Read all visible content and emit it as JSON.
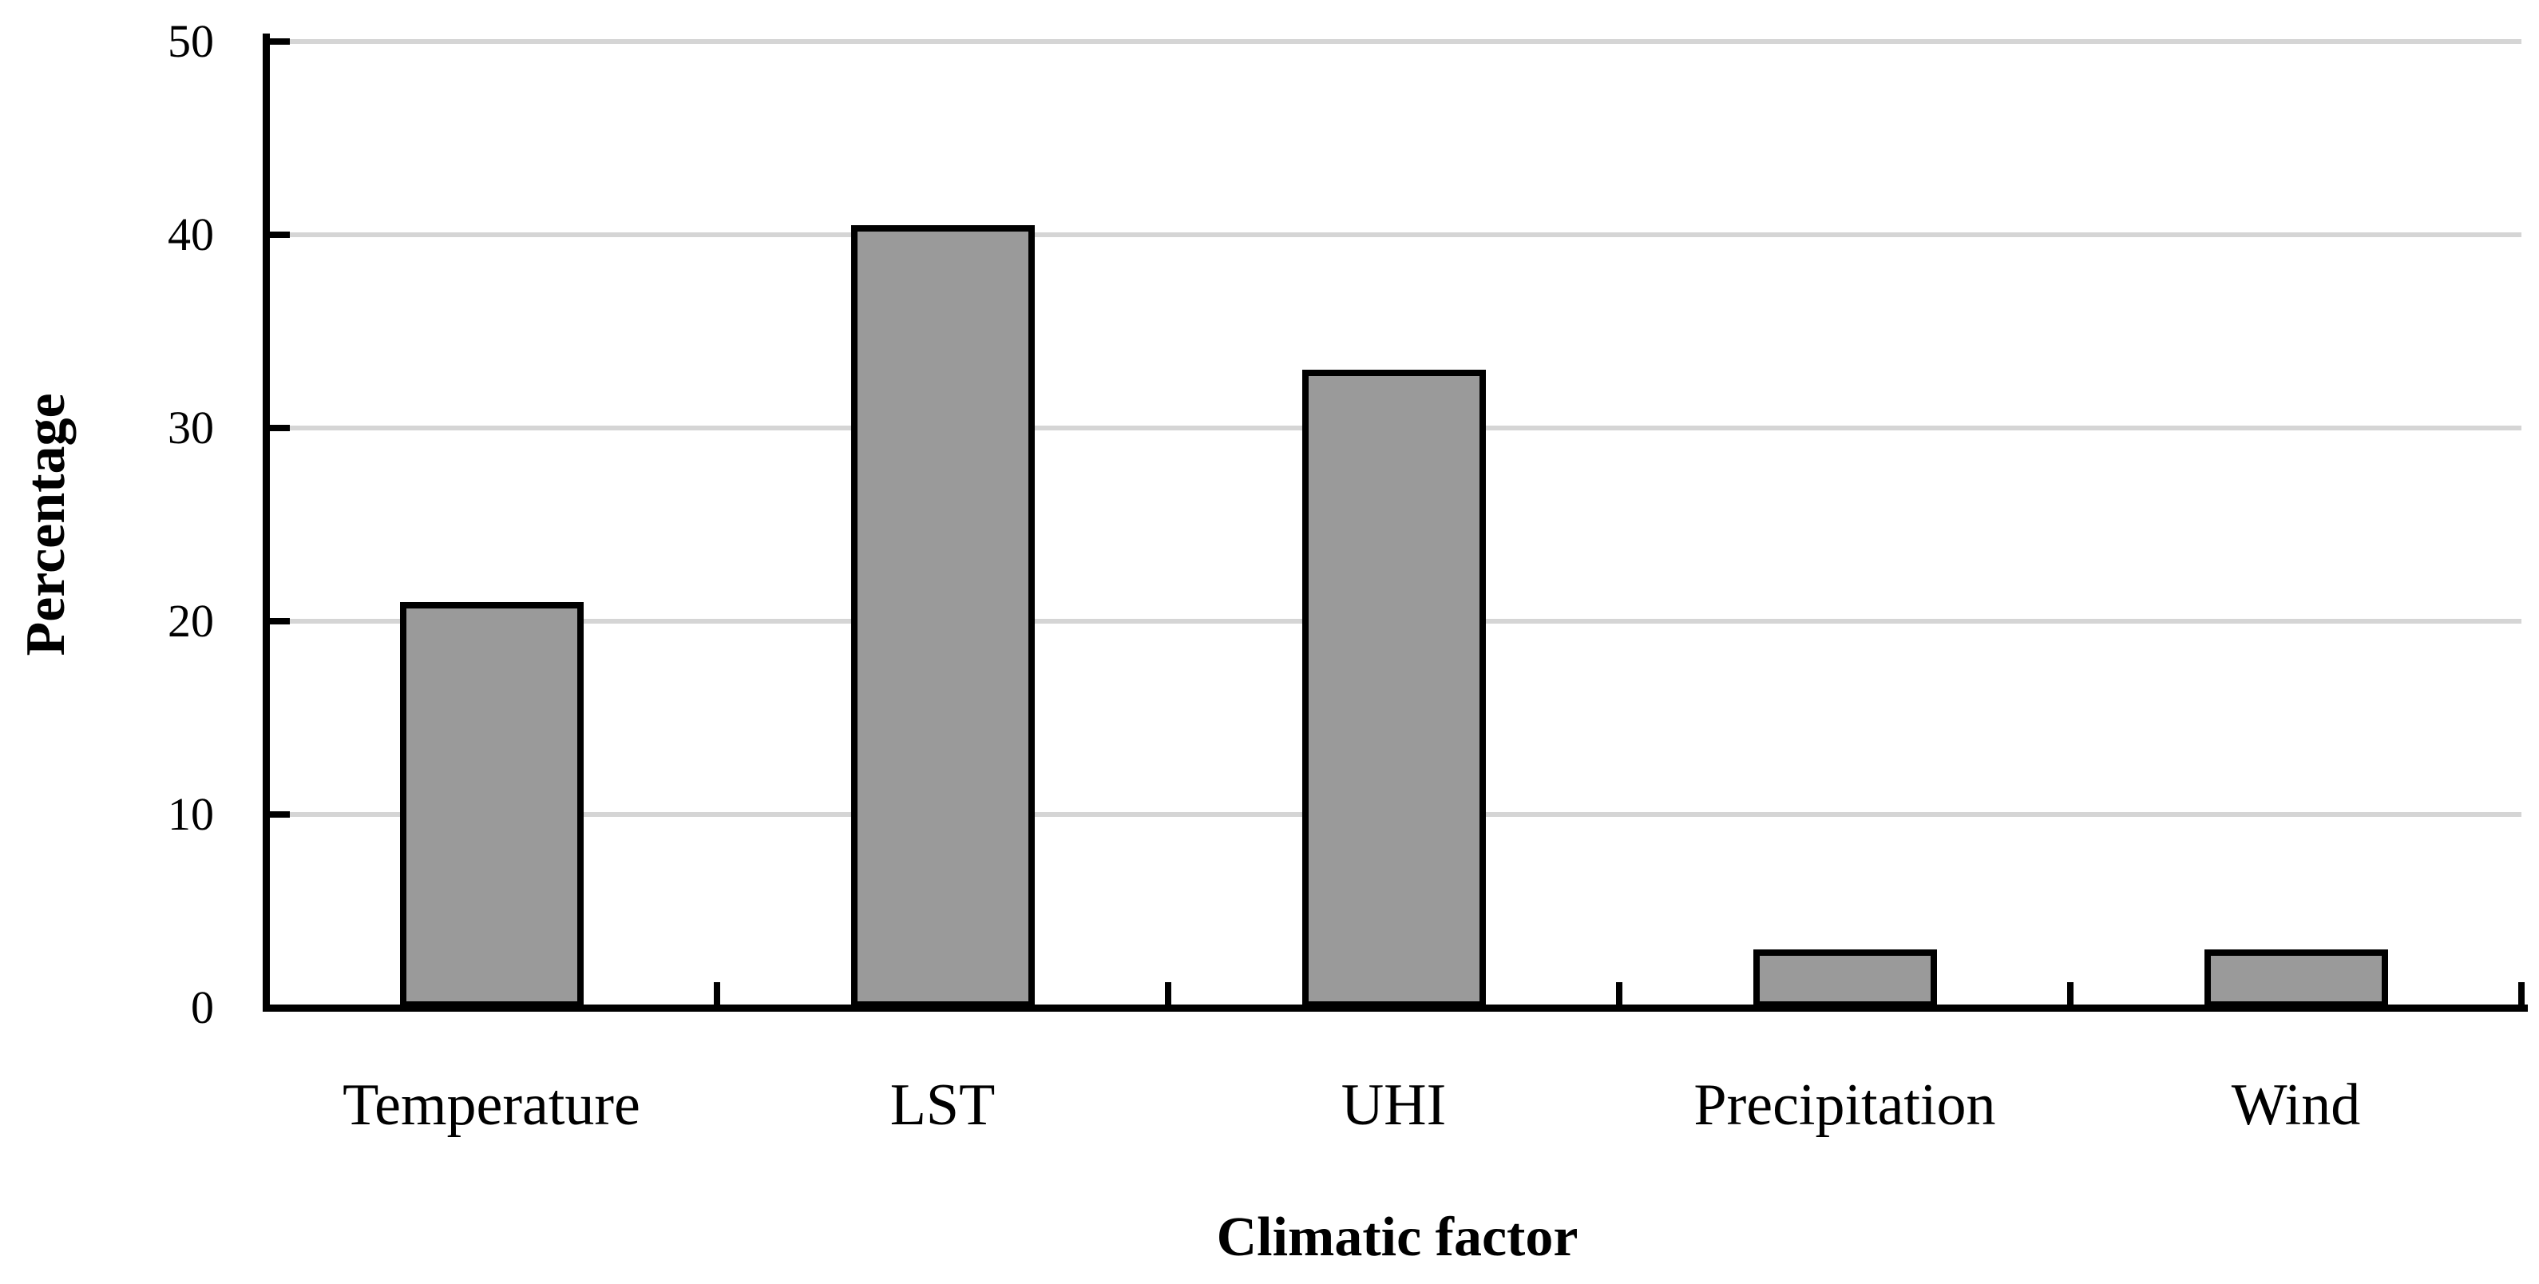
{
  "chart_data": {
    "type": "bar",
    "categories": [
      "Temperature",
      "LST",
      "UHI",
      "Precipitation",
      "Wind"
    ],
    "values": [
      21,
      40.5,
      33,
      3,
      3
    ],
    "title": "",
    "xlabel": "Climatic factor",
    "ylabel": "Percentage",
    "ylim": [
      0,
      50
    ],
    "yticks": [
      0,
      10,
      20,
      30,
      40,
      50
    ],
    "grid": "horizontal-only",
    "legend": "none",
    "bar_fill_color": "#9a9a9a",
    "bar_border_color": "#000000",
    "gridline_color": "#d5d5d5",
    "axis_color": "#000000",
    "text_color": "#000000"
  }
}
